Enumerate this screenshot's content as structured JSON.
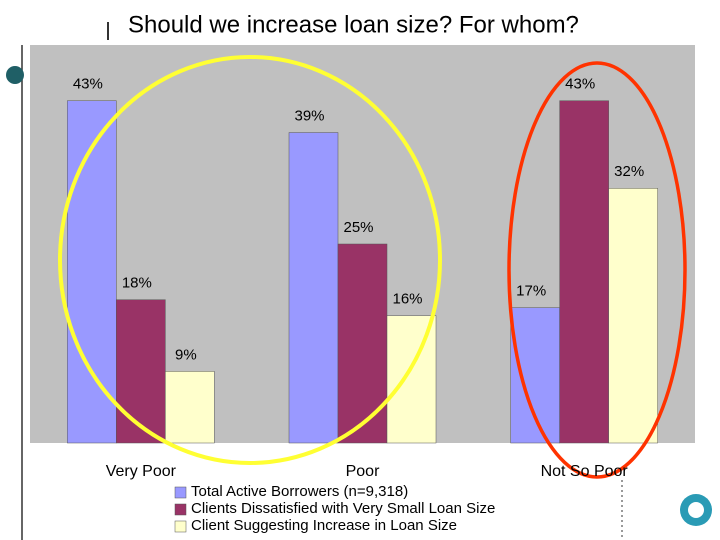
{
  "chart_data": {
    "type": "bar",
    "title": "Should we increase loan size? For whom?",
    "categories": [
      "Very Poor",
      "Poor",
      "Not So Poor"
    ],
    "series": [
      {
        "name": "Total Active Borrowers (n=9,318)",
        "color": "#9999ff",
        "values": [
          43,
          39,
          17
        ],
        "value_labels": [
          "43%",
          "39%",
          "17%"
        ]
      },
      {
        "name": "Clients Dissatisfied with Very Small Loan Size",
        "color": "#993366",
        "values": [
          18,
          25,
          43
        ],
        "value_labels": [
          "18%",
          "25%",
          "43%"
        ]
      },
      {
        "name": "Client Suggesting Increase in Loan Size",
        "color": "#ffffcc",
        "values": [
          9,
          16,
          32
        ],
        "value_labels": [
          "9%",
          "16%",
          "32%"
        ]
      }
    ],
    "ylim": [
      0,
      50
    ],
    "legend": "bottom"
  }
}
